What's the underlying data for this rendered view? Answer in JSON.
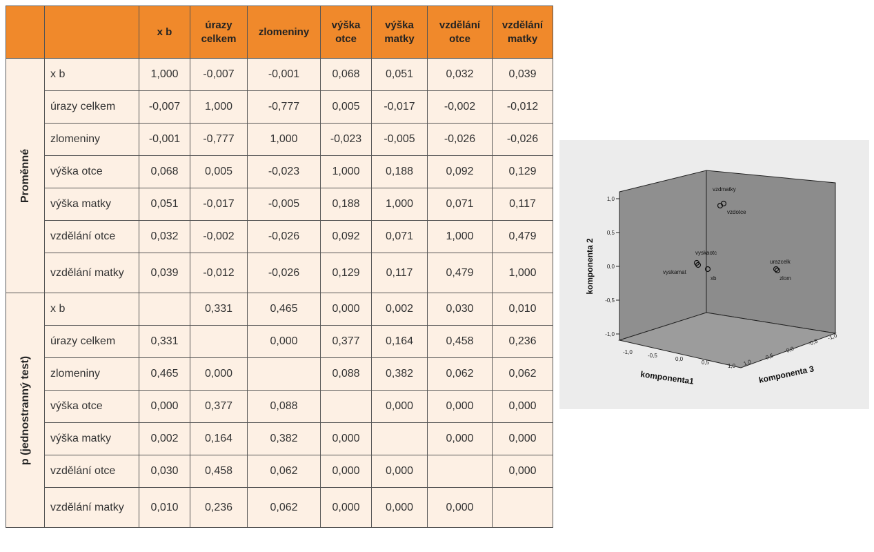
{
  "table": {
    "columns": [
      "",
      "",
      "x b",
      "úrazy celkem",
      "zlomeniny",
      "výška otce",
      "výška matky",
      "vzdělání otce",
      "vzdělání matky"
    ],
    "groups": [
      {
        "label": "Proměnné",
        "rows": [
          {
            "name": "x b",
            "values": [
              "1,000",
              "-0,007",
              "-0,001",
              "0,068",
              "0,051",
              "0,032",
              "0,039"
            ]
          },
          {
            "name": "úrazy celkem",
            "values": [
              "-0,007",
              "1,000",
              "-0,777",
              "0,005",
              "-0,017",
              "-0,002",
              "-0,012"
            ]
          },
          {
            "name": "zlomeniny",
            "values": [
              "-0,001",
              "-0,777",
              "1,000",
              "-0,023",
              "-0,005",
              "-0,026",
              "-0,026"
            ]
          },
          {
            "name": "výška otce",
            "values": [
              "0,068",
              "0,005",
              "-0,023",
              "1,000",
              "0,188",
              "0,092",
              "0,129"
            ]
          },
          {
            "name": "výška matky",
            "values": [
              "0,051",
              "-0,017",
              "-0,005",
              "0,188",
              "1,000",
              "0,071",
              "0,117"
            ]
          },
          {
            "name": "vzdělání otce",
            "values": [
              "0,032",
              "-0,002",
              "-0,026",
              "0,092",
              "0,071",
              "1,000",
              "0,479"
            ]
          },
          {
            "name": "vzdělání matky",
            "values": [
              "0,039",
              "-0,012",
              "-0,026",
              "0,129",
              "0,117",
              "0,479",
              "1,000"
            ]
          }
        ]
      },
      {
        "label": "p (jednostranný test)",
        "rows": [
          {
            "name": "x b",
            "values": [
              "",
              "0,331",
              "0,465",
              "0,000",
              "0,002",
              "0,030",
              "0,010"
            ]
          },
          {
            "name": "úrazy celkem",
            "values": [
              "0,331",
              "",
              "0,000",
              "0,377",
              "0,164",
              "0,458",
              "0,236"
            ]
          },
          {
            "name": "zlomeniny",
            "values": [
              "0,465",
              "0,000",
              "",
              "0,088",
              "0,382",
              "0,062",
              "0,062"
            ]
          },
          {
            "name": "výška otce",
            "values": [
              "0,000",
              "0,377",
              "0,088",
              "",
              "0,000",
              "0,000",
              "0,000"
            ]
          },
          {
            "name": "výška matky",
            "values": [
              "0,002",
              "0,164",
              "0,382",
              "0,000",
              "",
              "0,000",
              "0,000"
            ]
          },
          {
            "name": "vzdělání otce",
            "values": [
              "0,030",
              "0,458",
              "0,062",
              "0,000",
              "0,000",
              "",
              "0,000"
            ]
          },
          {
            "name": "vzdělání matky",
            "values": [
              "0,010",
              "0,236",
              "0,062",
              "0,000",
              "0,000",
              "0,000",
              ""
            ]
          }
        ]
      }
    ]
  },
  "plot": {
    "axes": {
      "komponenta2": {
        "label": "komponenta 2",
        "ticks": [
          "1,0",
          "0,5",
          "0,0",
          "-0,5",
          "-1,0"
        ]
      },
      "komponenta1": {
        "label": "komponenta1",
        "ticks": [
          "-1,0",
          "-0,5",
          "0,0",
          "0,5",
          "1,0"
        ]
      },
      "komponenta3": {
        "label": "komponenta 3",
        "ticks": [
          "1,0",
          "0,5",
          "0,0",
          "-0,5",
          "-1,0"
        ]
      }
    },
    "points": [
      {
        "label": "vzdmatky"
      },
      {
        "label": "vzdotce"
      },
      {
        "label": "vyskaotc"
      },
      {
        "label": "vyskamat"
      },
      {
        "label": "xb"
      },
      {
        "label": "urazcelk"
      },
      {
        "label": "zlom"
      }
    ],
    "colors": {
      "header": "#f0892b",
      "cell": "#fdf0e4",
      "panel": "#ececec",
      "wall": "#8c8c8c",
      "floor": "#9c9c9c"
    }
  }
}
